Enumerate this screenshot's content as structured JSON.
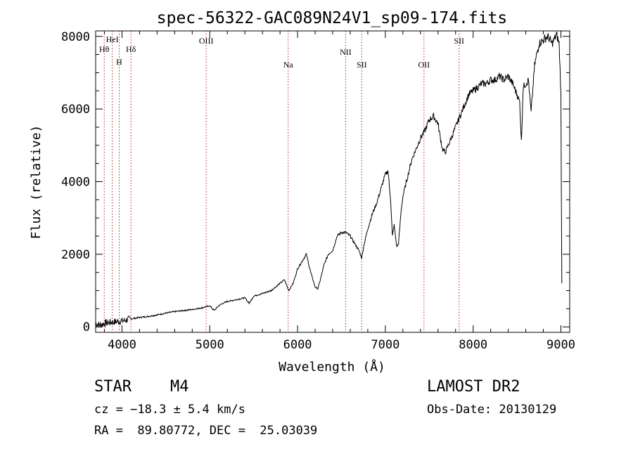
{
  "chart_data": {
    "type": "line",
    "title": "spec-56322-GAC089N24V1_sp09-174.fits",
    "xlabel": "Wavelength (Å)",
    "ylabel": "Flux (relative)",
    "xlim": [
      3700,
      9100
    ],
    "ylim": [
      -150,
      8150
    ],
    "xticks": [
      4000,
      5000,
      6000,
      7000,
      8000,
      9000
    ],
    "yticks": [
      0,
      2000,
      4000,
      6000,
      8000
    ],
    "series": [
      {
        "color": "#000000",
        "x": [
          3700,
          3750,
          3800,
          3850,
          3900,
          3950,
          4000,
          4050,
          4100,
          4150,
          4200,
          4300,
          4400,
          4500,
          4600,
          4700,
          4800,
          4900,
          4950,
          5000,
          5050,
          5100,
          5150,
          5200,
          5300,
          5400,
          5450,
          5500,
          5600,
          5700,
          5750,
          5800,
          5850,
          5900,
          5950,
          6000,
          6050,
          6100,
          6150,
          6200,
          6230,
          6260,
          6300,
          6350,
          6400,
          6450,
          6500,
          6550,
          6600,
          6650,
          6700,
          6730,
          6760,
          6800,
          6850,
          6900,
          6950,
          7000,
          7030,
          7060,
          7080,
          7100,
          7130,
          7150,
          7180,
          7200,
          7250,
          7300,
          7350,
          7400,
          7450,
          7500,
          7550,
          7600,
          7620,
          7650,
          7680,
          7700,
          7750,
          7800,
          7850,
          7900,
          7950,
          8000,
          8050,
          8100,
          8150,
          8200,
          8250,
          8300,
          8350,
          8400,
          8450,
          8500,
          8530,
          8550,
          8570,
          8600,
          8630,
          8660,
          8700,
          8750,
          8800,
          8850,
          8900,
          8950,
          8980,
          9000,
          9010
        ],
        "y": [
          100,
          50,
          100,
          120,
          130,
          150,
          160,
          190,
          220,
          240,
          260,
          290,
          330,
          380,
          420,
          450,
          480,
          520,
          550,
          580,
          450,
          580,
          650,
          700,
          750,
          800,
          650,
          850,
          920,
          1000,
          1100,
          1200,
          1300,
          1000,
          1200,
          1600,
          1800,
          2000,
          1500,
          1100,
          1050,
          1300,
          1700,
          2000,
          2100,
          2500,
          2600,
          2600,
          2500,
          2300,
          2100,
          1900,
          2300,
          2700,
          3100,
          3400,
          3800,
          4200,
          4300,
          3500,
          2500,
          2800,
          2200,
          2300,
          3200,
          3600,
          4100,
          4600,
          4900,
          5200,
          5400,
          5700,
          5800,
          5600,
          5300,
          4900,
          4800,
          4900,
          5200,
          5500,
          5800,
          6100,
          6400,
          6500,
          6600,
          6700,
          6700,
          6800,
          6800,
          6900,
          6800,
          6900,
          6700,
          6400,
          6200,
          5100,
          6600,
          6700,
          6800,
          5900,
          7200,
          7800,
          7900,
          8000,
          7800,
          8050,
          7800,
          6400,
          1200
        ]
      }
    ],
    "lines": [
      {
        "label": "Hθ",
        "x": 3798
      },
      {
        "label": "HeI",
        "x": 3889
      },
      {
        "label": "H",
        "x": 3968
      },
      {
        "label": "Hδ",
        "x": 4102
      },
      {
        "label": "OIII",
        "x": 4959
      },
      {
        "label": "Na",
        "x": 5893
      },
      {
        "label": "NII",
        "x": 6548
      },
      {
        "label": "SII",
        "x": 6731
      },
      {
        "label": "OII",
        "x": 7440
      },
      {
        "label": "SII",
        "x": 7840
      }
    ],
    "line_color": "#b22222"
  },
  "info": {
    "object_class": "STAR",
    "subclass": "M4",
    "survey": "LAMOST DR2",
    "cz": "cz = −18.3 ± 5.4 km/s",
    "obs_date": "Obs-Date: 20130129",
    "coords": "RA =  89.80772, DEC =  25.03039"
  }
}
